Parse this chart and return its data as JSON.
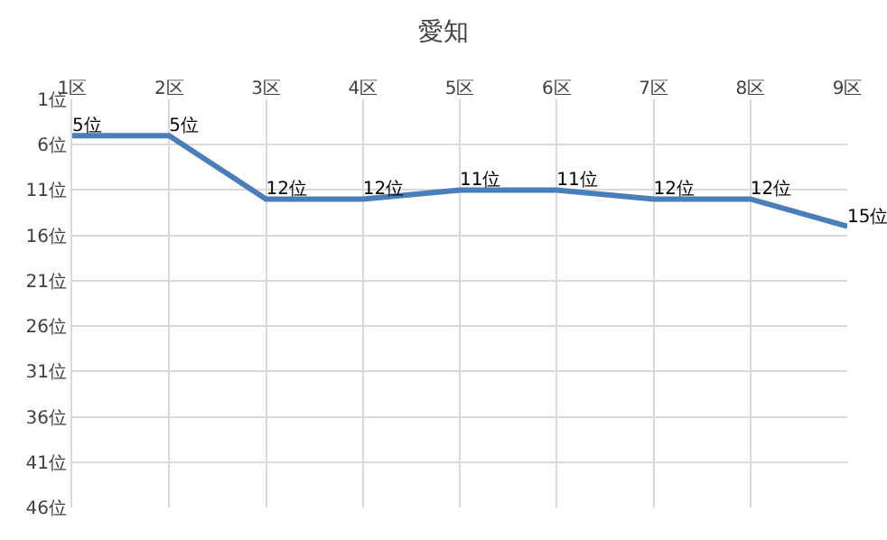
{
  "chart_data": {
    "type": "line",
    "title": "愛知",
    "categories": [
      "1区",
      "2区",
      "3区",
      "4区",
      "5区",
      "6区",
      "7区",
      "8区",
      "9区"
    ],
    "series": [
      {
        "color": "#4a7ebb",
        "values": [
          5,
          5,
          12,
          12,
          11,
          11,
          12,
          12,
          15
        ],
        "value_labels": [
          "5位",
          "5位",
          "12位",
          "12位",
          "11位",
          "11位",
          "12位",
          "12位",
          "15位"
        ]
      }
    ],
    "ylim": [
      46,
      1
    ],
    "yticks": [
      {
        "value": 1,
        "label": "1位"
      },
      {
        "value": 6,
        "label": "6位"
      },
      {
        "value": 11,
        "label": "11位"
      },
      {
        "value": 16,
        "label": "16位"
      },
      {
        "value": 21,
        "label": "21位"
      },
      {
        "value": 26,
        "label": "26位"
      },
      {
        "value": 31,
        "label": "31位"
      },
      {
        "value": 36,
        "label": "36位"
      },
      {
        "value": 41,
        "label": "41位"
      },
      {
        "value": 46,
        "label": "46位"
      }
    ],
    "grid": true,
    "marker": "none",
    "line_style": "solid"
  }
}
